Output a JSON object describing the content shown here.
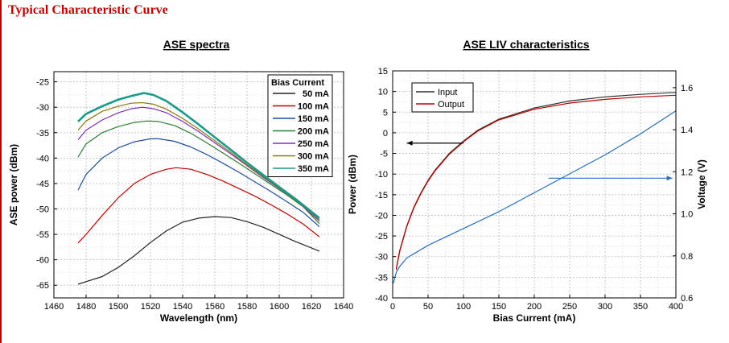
{
  "page_title": "Typical Characteristic Curve",
  "colors": {
    "title": "#c00000",
    "frame": "#c00000",
    "grid": "#bdbdbd"
  },
  "chart_data": [
    {
      "type": "line",
      "title": "ASE spectra",
      "xlabel": "Wavelength (nm)",
      "ylabel": "ASE power (dBm)",
      "xlim": [
        1460,
        1640
      ],
      "ylim": [
        -67.5,
        -23
      ],
      "xticks": [
        1460,
        1480,
        1500,
        1520,
        1540,
        1560,
        1580,
        1600,
        1620,
        1640
      ],
      "yticks": [
        -25,
        -30,
        -35,
        -40,
        -45,
        -50,
        -55,
        -60,
        -65
      ],
      "grid": true,
      "legend_title": "Bias Current",
      "legend_position": "top-right",
      "series": [
        {
          "name": "50 mA",
          "color": "#222222",
          "x": [
            1475,
            1480,
            1490,
            1500,
            1510,
            1520,
            1530,
            1540,
            1550,
            1560,
            1570,
            1580,
            1590,
            1600,
            1610,
            1625
          ],
          "y": [
            -64.8,
            -64.3,
            -63.3,
            -61.5,
            -59.2,
            -56.6,
            -54.3,
            -52.6,
            -51.8,
            -51.5,
            -51.7,
            -52.5,
            -53.6,
            -55.0,
            -56.4,
            -58.3
          ]
        },
        {
          "name": "100 mA",
          "color": "#c00000",
          "x": [
            1475,
            1480,
            1490,
            1500,
            1510,
            1520,
            1530,
            1536,
            1545,
            1555,
            1565,
            1575,
            1585,
            1595,
            1605,
            1615,
            1625
          ],
          "y": [
            -56.7,
            -55.0,
            -51.3,
            -47.8,
            -45.0,
            -43.2,
            -42.2,
            -41.9,
            -42.2,
            -43.2,
            -44.5,
            -46.0,
            -47.5,
            -49.2,
            -51.0,
            -53.0,
            -55.5
          ]
        },
        {
          "name": "150 mA",
          "color": "#1f4e9a",
          "x": [
            1475,
            1480,
            1490,
            1500,
            1510,
            1520,
            1525,
            1535,
            1545,
            1555,
            1565,
            1575,
            1585,
            1595,
            1605,
            1615,
            1625
          ],
          "y": [
            -46.3,
            -43.2,
            -40.0,
            -38.0,
            -36.8,
            -36.2,
            -36.2,
            -36.7,
            -37.8,
            -39.3,
            -41.0,
            -42.8,
            -44.7,
            -46.6,
            -48.6,
            -50.7,
            -53.5
          ]
        },
        {
          "name": "200 mA",
          "color": "#2e7d32",
          "x": [
            1475,
            1480,
            1490,
            1500,
            1510,
            1518,
            1525,
            1535,
            1545,
            1555,
            1565,
            1575,
            1585,
            1595,
            1605,
            1615,
            1625
          ],
          "y": [
            -39.8,
            -37.2,
            -35.0,
            -33.8,
            -33.0,
            -32.7,
            -32.8,
            -33.6,
            -35.1,
            -37.0,
            -39.0,
            -41.0,
            -43.1,
            -45.2,
            -47.3,
            -49.6,
            -52.9
          ]
        },
        {
          "name": "250 mA",
          "color": "#7e2fb8",
          "x": [
            1475,
            1480,
            1490,
            1500,
            1508,
            1515,
            1522,
            1530,
            1540,
            1550,
            1560,
            1570,
            1580,
            1590,
            1600,
            1610,
            1625
          ],
          "y": [
            -36.4,
            -34.5,
            -32.5,
            -31.1,
            -30.3,
            -30.0,
            -30.3,
            -31.1,
            -32.8,
            -34.8,
            -37.0,
            -39.2,
            -41.5,
            -43.8,
            -46.0,
            -48.2,
            -52.4
          ]
        },
        {
          "name": "300 mA",
          "color": "#8a7a10",
          "x": [
            1475,
            1480,
            1490,
            1500,
            1508,
            1515,
            1522,
            1530,
            1540,
            1550,
            1560,
            1570,
            1580,
            1590,
            1600,
            1610,
            1625
          ],
          "y": [
            -34.5,
            -32.7,
            -30.8,
            -29.8,
            -29.2,
            -29.1,
            -29.4,
            -30.4,
            -32.2,
            -34.3,
            -36.6,
            -38.9,
            -41.3,
            -43.6,
            -45.9,
            -48.2,
            -52.1
          ]
        },
        {
          "name": "350 mA",
          "color": "#1a9a8a",
          "x": [
            1475,
            1480,
            1490,
            1500,
            1508,
            1516,
            1522,
            1530,
            1540,
            1550,
            1560,
            1570,
            1580,
            1590,
            1600,
            1610,
            1625
          ],
          "y": [
            -32.8,
            -31.3,
            -29.8,
            -28.5,
            -27.8,
            -27.2,
            -27.6,
            -28.8,
            -31.0,
            -33.4,
            -35.9,
            -38.4,
            -40.9,
            -43.3,
            -45.7,
            -48.0,
            -51.8
          ]
        }
      ]
    },
    {
      "type": "line",
      "title": "ASE LIV characteristics",
      "xlabel": "Bias Current (mA)",
      "ylabel": "Power (dBm)",
      "y2label": "Voltage (V)",
      "xlim": [
        0,
        400
      ],
      "ylim": [
        -40,
        15
      ],
      "y2lim": [
        0.6,
        1.68
      ],
      "xticks": [
        0,
        50,
        100,
        150,
        200,
        250,
        300,
        350,
        400
      ],
      "yticks": [
        15,
        10,
        5,
        0,
        -5,
        -10,
        -15,
        -20,
        -25,
        -30,
        -35,
        -40
      ],
      "y2ticks": [
        1.6,
        1.4,
        1.2,
        1.0,
        0.8,
        0.6
      ],
      "grid": true,
      "legend_position": "top-left",
      "series": [
        {
          "name": "Input",
          "color": "#333333",
          "axis": "left",
          "x": [
            5,
            10,
            20,
            30,
            40,
            50,
            60,
            80,
            100,
            120,
            150,
            200,
            250,
            300,
            350,
            400
          ],
          "y": [
            -33.0,
            -28.5,
            -22.5,
            -18.0,
            -14.5,
            -11.5,
            -9.0,
            -5.0,
            -2.0,
            0.6,
            3.3,
            6.0,
            7.7,
            8.7,
            9.3,
            9.8
          ]
        },
        {
          "name": "Output",
          "color": "#c00000",
          "axis": "left",
          "x": [
            5,
            10,
            20,
            30,
            40,
            50,
            60,
            80,
            100,
            120,
            150,
            200,
            250,
            300,
            350,
            400
          ],
          "y": [
            -33.2,
            -28.7,
            -22.7,
            -18.2,
            -14.7,
            -11.7,
            -9.2,
            -5.2,
            -2.2,
            0.4,
            3.1,
            5.7,
            7.2,
            8.1,
            8.7,
            9.1
          ]
        },
        {
          "name": "Voltage",
          "color": "#2a6fc0",
          "axis": "right",
          "x": [
            1,
            5,
            10,
            20,
            30,
            50,
            75,
            100,
            150,
            200,
            250,
            300,
            350,
            400
          ],
          "y": [
            0.67,
            0.72,
            0.75,
            0.79,
            0.81,
            0.85,
            0.89,
            0.93,
            1.01,
            1.1,
            1.19,
            1.28,
            1.38,
            1.49
          ]
        }
      ],
      "annotations": [
        {
          "type": "arrow",
          "direction": "left",
          "color": "#000000",
          "from": [
            100,
            -2.5
          ],
          "to": [
            20,
            -2.5
          ]
        },
        {
          "type": "arrow",
          "direction": "right",
          "color": "#2a6fc0",
          "from": [
            220,
            -11
          ],
          "to": [
            395,
            -11
          ]
        }
      ]
    }
  ]
}
